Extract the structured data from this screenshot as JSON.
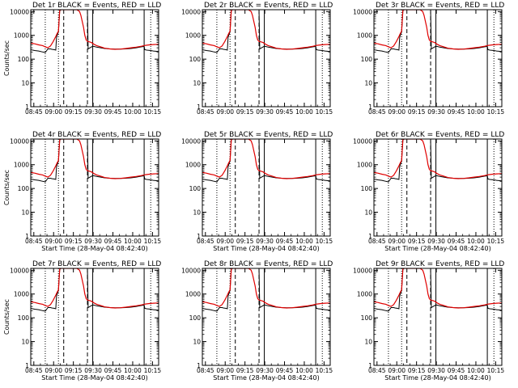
{
  "figure": {
    "background": "#ffffff",
    "axis_color": "#000000",
    "events_color": "#000000",
    "lld_color": "#e00000"
  },
  "chart_data": [
    {
      "type": "line",
      "title": "Det 1r BLACK = Events, RED = LLD",
      "xlabel": "",
      "ylabel": "Counts/sec",
      "y_scale": "log",
      "ylim": [
        1,
        12000
      ],
      "yticks": [
        1,
        10,
        100,
        1000,
        10000
      ],
      "xticks": [
        "08:45",
        "09:00",
        "09:15",
        "09:30",
        "09:45",
        "10:00",
        "10:15"
      ],
      "xlim_minutes": [
        0,
        97
      ],
      "dotted_lines_min": [
        11,
        21,
        91
      ],
      "dashed_lines_min": [
        25,
        43
      ],
      "solid_lines_min": [
        47,
        86
      ],
      "series": []
    },
    {
      "type": "line",
      "title": "Det 2r BLACK = Events, RED = LLD",
      "xlabel": "",
      "ylabel": "",
      "y_scale": "log",
      "ylim": [
        1,
        12000
      ],
      "yticks": [
        1,
        10,
        100,
        1000,
        10000
      ],
      "xticks": [
        "08:45",
        "09:00",
        "09:15",
        "09:30",
        "09:45",
        "10:00",
        "10:15"
      ],
      "xlim_minutes": [
        0,
        97
      ],
      "dotted_lines_min": [
        11,
        21,
        91
      ],
      "dashed_lines_min": [
        25,
        43
      ],
      "solid_lines_min": [
        47,
        86
      ],
      "series": []
    },
    {
      "type": "line",
      "title": "Det 3r BLACK = Events, RED = LLD",
      "xlabel": "",
      "ylabel": "",
      "y_scale": "log",
      "ylim": [
        1,
        12000
      ],
      "yticks": [
        1,
        10,
        100,
        1000,
        10000
      ],
      "xticks": [
        "08:45",
        "09:00",
        "09:15",
        "09:30",
        "09:45",
        "10:00",
        "10:15"
      ],
      "xlim_minutes": [
        0,
        97
      ],
      "dotted_lines_min": [
        11,
        21,
        91
      ],
      "dashed_lines_min": [
        25,
        43
      ],
      "solid_lines_min": [
        47,
        86
      ],
      "series": []
    },
    {
      "type": "line",
      "title": "Det 4r BLACK = Events, RED = LLD",
      "xlabel": "Start Time (28-May-04 08:42:40)",
      "ylabel": "Counts/sec",
      "y_scale": "log",
      "ylim": [
        1,
        12000
      ],
      "yticks": [
        1,
        10,
        100,
        1000,
        10000
      ],
      "xticks": [
        "08:45",
        "09:00",
        "09:15",
        "09:30",
        "09:45",
        "10:00",
        "10:15"
      ],
      "xlim_minutes": [
        0,
        97
      ],
      "dotted_lines_min": [
        11,
        21,
        91
      ],
      "dashed_lines_min": [
        25,
        43
      ],
      "solid_lines_min": [
        47,
        86
      ],
      "series": []
    },
    {
      "type": "line",
      "title": "Det 5r BLACK = Events, RED = LLD",
      "xlabel": "Start Time (28-May-04 08:42:40)",
      "ylabel": "",
      "y_scale": "log",
      "ylim": [
        1,
        12000
      ],
      "yticks": [
        1,
        10,
        100,
        1000,
        10000
      ],
      "xticks": [
        "08:45",
        "09:00",
        "09:15",
        "09:30",
        "09:45",
        "10:00",
        "10:15"
      ],
      "xlim_minutes": [
        0,
        97
      ],
      "dotted_lines_min": [
        11,
        21,
        91
      ],
      "dashed_lines_min": [
        25,
        43
      ],
      "solid_lines_min": [
        47,
        86
      ],
      "series": []
    },
    {
      "type": "line",
      "title": "Det 6r BLACK = Events, RED = LLD",
      "xlabel": "Start Time (28-May-04 08:42:40)",
      "ylabel": "",
      "y_scale": "log",
      "ylim": [
        1,
        12000
      ],
      "yticks": [
        1,
        10,
        100,
        1000,
        10000
      ],
      "xticks": [
        "08:45",
        "09:00",
        "09:15",
        "09:30",
        "09:45",
        "10:00",
        "10:15"
      ],
      "xlim_minutes": [
        0,
        97
      ],
      "dotted_lines_min": [
        11,
        21,
        91
      ],
      "dashed_lines_min": [
        25,
        43
      ],
      "solid_lines_min": [
        47,
        86
      ],
      "series": []
    },
    {
      "type": "line",
      "title": "Det 7r BLACK = Events, RED = LLD",
      "xlabel": "Start Time (28-May-04 08:42:40)",
      "ylabel": "Counts/sec",
      "y_scale": "log",
      "ylim": [
        1,
        12000
      ],
      "yticks": [
        1,
        10,
        100,
        1000,
        10000
      ],
      "xticks": [
        "08:45",
        "09:00",
        "09:15",
        "09:30",
        "09:45",
        "10:00",
        "10:15"
      ],
      "xlim_minutes": [
        0,
        97
      ],
      "dotted_lines_min": [
        11,
        21,
        91
      ],
      "dashed_lines_min": [
        25,
        43
      ],
      "solid_lines_min": [
        47,
        86
      ],
      "series": []
    },
    {
      "type": "line",
      "title": "Det 8r BLACK = Events, RED = LLD",
      "xlabel": "Start Time (28-May-04 08:42:40)",
      "ylabel": "",
      "y_scale": "log",
      "ylim": [
        1,
        12000
      ],
      "yticks": [
        1,
        10,
        100,
        1000,
        10000
      ],
      "xticks": [
        "08:45",
        "09:00",
        "09:15",
        "09:30",
        "09:45",
        "10:00",
        "10:15"
      ],
      "xlim_minutes": [
        0,
        97
      ],
      "dotted_lines_min": [
        11,
        21,
        91
      ],
      "dashed_lines_min": [
        25,
        43
      ],
      "solid_lines_min": [
        47,
        86
      ],
      "series": []
    },
    {
      "type": "line",
      "title": "Det 9r BLACK = Events, RED = LLD",
      "xlabel": "Start Time (28-May-04 08:42:40)",
      "ylabel": "",
      "y_scale": "log",
      "ylim": [
        1,
        12000
      ],
      "yticks": [
        1,
        10,
        100,
        1000,
        10000
      ],
      "xticks": [
        "08:45",
        "09:00",
        "09:15",
        "09:30",
        "09:45",
        "10:00",
        "10:15"
      ],
      "xlim_minutes": [
        0,
        97
      ],
      "dotted_lines_min": [
        11,
        21,
        91
      ],
      "dashed_lines_min": [
        25,
        43
      ],
      "solid_lines_min": [
        47,
        86
      ],
      "series": []
    }
  ],
  "shared_series": [
    {
      "color": "#000000",
      "x": [
        0,
        3,
        6,
        9,
        11,
        13,
        15,
        16,
        18,
        19,
        19.5,
        20,
        21,
        22,
        23,
        25,
        28,
        31,
        34,
        37,
        40,
        42,
        43,
        43.5,
        45,
        47,
        48,
        50,
        53,
        56,
        60,
        64,
        68,
        72,
        76,
        80,
        84,
        86,
        86.5,
        88,
        91,
        93,
        97
      ],
      "y": [
        250,
        230,
        220,
        200,
        190,
        270,
        270,
        260,
        250,
        240,
        800,
        1000,
        1400,
        11000,
        12000,
        12000,
        12000,
        12000,
        12000,
        12000,
        12000,
        12000,
        12000,
        270,
        300,
        350,
        340,
        320,
        300,
        280,
        270,
        265,
        265,
        270,
        280,
        300,
        330,
        340,
        250,
        240,
        230,
        220,
        210
      ]
    },
    {
      "color": "#e00000",
      "x": [
        0,
        3,
        6,
        9,
        11,
        13,
        15,
        17,
        19,
        20,
        21,
        22,
        23,
        25,
        28,
        31,
        33,
        35,
        37,
        38,
        40,
        41,
        42,
        43,
        44,
        46,
        48,
        50,
        53,
        56,
        60,
        64,
        68,
        72,
        76,
        80,
        84,
        87,
        90,
        93,
        97
      ],
      "y": [
        470,
        440,
        400,
        370,
        330,
        300,
        360,
        550,
        900,
        1200,
        1500,
        12000,
        12000,
        12000,
        12000,
        12000,
        12000,
        12000,
        10000,
        7000,
        2200,
        1000,
        650,
        560,
        540,
        500,
        420,
        370,
        330,
        290,
        270,
        260,
        265,
        280,
        300,
        320,
        350,
        380,
        400,
        410,
        420
      ]
    }
  ]
}
